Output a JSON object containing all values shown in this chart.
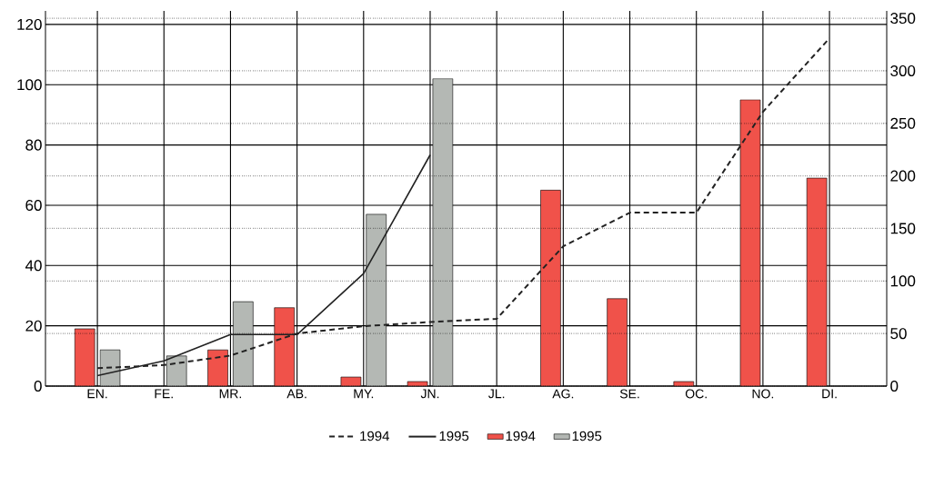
{
  "chart_data": {
    "type": "bar",
    "categories": [
      "EN.",
      "FE.",
      "MR.",
      "AB.",
      "MY.",
      "JN.",
      "JL.",
      "AG.",
      "SE.",
      "OC.",
      "NO.",
      "DI."
    ],
    "series": [
      {
        "name": "1994",
        "type": "line",
        "axis": "y2",
        "color": "#222222",
        "line_style": "dashed",
        "values": [
          17,
          20,
          29,
          50,
          57,
          61,
          64,
          133,
          165,
          165,
          261,
          331
        ]
      },
      {
        "name": "1995",
        "type": "line",
        "axis": "y2",
        "color": "#222222",
        "line_style": "solid",
        "values": [
          10,
          24,
          49,
          49,
          107,
          220,
          null,
          null,
          null,
          null,
          null,
          null
        ]
      },
      {
        "name": "1994",
        "color": "#f0524a",
        "values": [
          19,
          null,
          12,
          26,
          3,
          1.5,
          null,
          65,
          29,
          1.5,
          95,
          69
        ]
      },
      {
        "name": "1995",
        "color": "#b4b8b4",
        "values": [
          12,
          10,
          28,
          null,
          57,
          102,
          null,
          null,
          null,
          null,
          null,
          null
        ]
      }
    ],
    "ylim": [
      0,
      124.5
    ],
    "yticks": [
      0,
      20,
      40,
      60,
      80,
      100,
      120
    ],
    "y2lim": [
      0,
      357
    ],
    "y2ticks": [
      0,
      50,
      100,
      150,
      200,
      250,
      300,
      350
    ],
    "grid": true,
    "legend": "bottom",
    "marker": "none"
  }
}
